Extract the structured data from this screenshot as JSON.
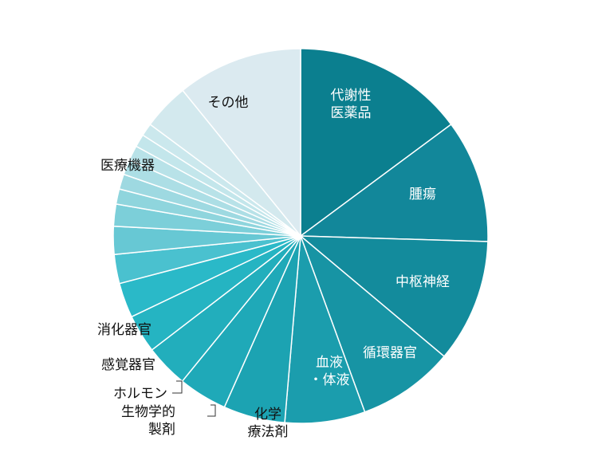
{
  "chart_data": {
    "type": "pie",
    "title": "",
    "slices": [
      {
        "label": "代謝性医薬品",
        "lines": [
          "代謝性",
          "医薬品"
        ],
        "value": 14.8,
        "color": "#0b7f8f"
      },
      {
        "label": "腫瘍",
        "lines": [
          "腫瘍"
        ],
        "value": 10.6,
        "color": "#12879a"
      },
      {
        "label": "中枢神経",
        "lines": [
          "中枢神経"
        ],
        "value": 10.6,
        "color": "#138b9c"
      },
      {
        "label": "循環器官",
        "lines": [
          "循環器官"
        ],
        "value": 8.3,
        "color": "#1794a4"
      },
      {
        "label": "血液・体液",
        "lines": [
          "血液",
          "・体液"
        ],
        "value": 6.9,
        "color": "#1b9dad"
      },
      {
        "label": "化学療法剤",
        "lines": [
          "化学",
          "療法剤"
        ],
        "value": 5.3,
        "color": "#1ca3b2"
      },
      {
        "label": "生物学的製剤",
        "lines": [
          "生物学的",
          "製剤"
        ],
        "value": 4.2,
        "color": "#1fa9b8"
      },
      {
        "label": "ホルモン",
        "lines": [
          "ホルモン"
        ],
        "value": 3.7,
        "color": "#22aebc"
      },
      {
        "label": "感覚器官",
        "lines": [
          "感覚器官"
        ],
        "value": 3.3,
        "color": "#25b4c2"
      },
      {
        "label": "消化器官",
        "lines": [
          "消化器官"
        ],
        "value": 3.0,
        "color": "#2ab9c8"
      },
      {
        "label": "",
        "lines": [],
        "value": 2.5,
        "color": "#4ac1cf"
      },
      {
        "label": "",
        "lines": [],
        "value": 2.4,
        "color": "#67c8d4"
      },
      {
        "label": "",
        "lines": [],
        "value": 1.9,
        "color": "#7ccfd9"
      },
      {
        "label": "",
        "lines": [],
        "value": 1.3,
        "color": "#8fd5dd"
      },
      {
        "label": "",
        "lines": [],
        "value": 1.3,
        "color": "#9ed9e1"
      },
      {
        "label": "",
        "lines": [],
        "value": 1.3,
        "color": "#acdee5"
      },
      {
        "label": "",
        "lines": [],
        "value": 1.3,
        "color": "#b8e2e8"
      },
      {
        "label": "",
        "lines": [],
        "value": 1.1,
        "color": "#c3e6eb"
      },
      {
        "label": "",
        "lines": [],
        "value": 1.1,
        "color": "#cbe8ed"
      },
      {
        "label": "医療機器",
        "lines": [
          "医療機器"
        ],
        "value": 4.0,
        "color": "#d3e9ee"
      },
      {
        "label": "その他",
        "lines": [
          "その他"
        ],
        "value": 10.8,
        "color": "#dbeaf0"
      }
    ]
  }
}
